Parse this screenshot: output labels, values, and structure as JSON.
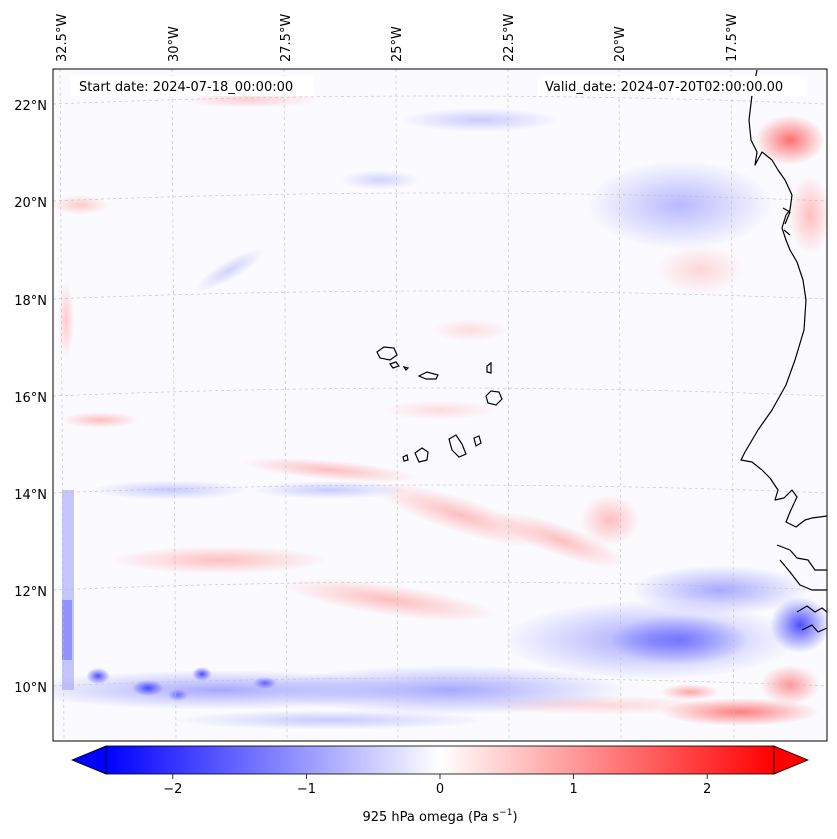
{
  "map": {
    "start_date_text": "Start date: 2024-07-18_00:00:00",
    "valid_date_text": "Valid_date: 2024-07-20T02:00:00.00",
    "lon_labels": [
      "32.5°W",
      "30°W",
      "27.5°W",
      "25°W",
      "22.5°W",
      "20°W",
      "17.5°W"
    ],
    "lat_labels": [
      "22°N",
      "20°N",
      "18°N",
      "16°N",
      "14°N",
      "12°N",
      "10°N"
    ],
    "colorbar": {
      "label_text": "925 hPa omega (Pa s",
      "label_sup": "−1",
      "label_close": ")",
      "tick_labels": [
        "−2",
        "−1",
        "0",
        "1",
        "2"
      ],
      "tick_values": [
        -2,
        -1,
        0,
        1,
        2
      ],
      "range": [
        -2.5,
        2.5
      ],
      "extend": "both",
      "colormap": "bwr",
      "low_color": "#0000ff",
      "mid_color": "#ffffff",
      "high_color": "#ff0000"
    },
    "coastline_color": "#000000",
    "gridline_color": "#bbbbbb"
  }
}
